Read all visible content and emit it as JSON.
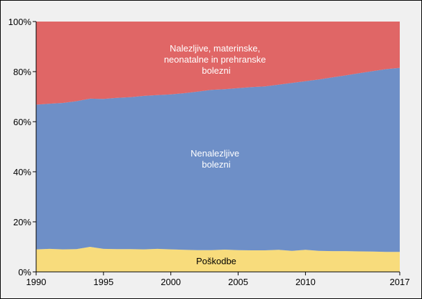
{
  "chart_data": {
    "type": "area",
    "stacked": true,
    "percent": true,
    "x": [
      1990,
      1991,
      1992,
      1993,
      1994,
      1995,
      1996,
      1997,
      1998,
      1999,
      2000,
      2001,
      2002,
      2003,
      2004,
      2005,
      2006,
      2007,
      2008,
      2009,
      2010,
      2011,
      2012,
      2013,
      2014,
      2015,
      2016,
      2017
    ],
    "series": [
      {
        "name": "Poškodbe",
        "color": "#f8dc7c",
        "values": [
          9.0,
          9.2,
          9.0,
          9.1,
          10.0,
          9.2,
          9.1,
          9.1,
          9.0,
          9.2,
          9.0,
          8.8,
          8.7,
          8.7,
          8.9,
          8.7,
          8.6,
          8.6,
          8.8,
          8.4,
          8.8,
          8.4,
          8.3,
          8.3,
          8.2,
          8.1,
          8.0,
          8.0
        ]
      },
      {
        "name": "Nenalezljive bolezni",
        "color": "#6e8fc7",
        "values": [
          57.8,
          58.0,
          58.5,
          59.1,
          59.2,
          59.9,
          60.4,
          60.7,
          61.3,
          61.4,
          61.9,
          62.6,
          63.3,
          64.0,
          64.1,
          64.7,
          65.2,
          65.5,
          66.0,
          67.1,
          67.4,
          68.5,
          69.4,
          70.2,
          71.2,
          72.1,
          73.0,
          73.5
        ]
      },
      {
        "name": "Nalezljive, materinske, neonatalne in prehranske bolezni",
        "color": "#e06666",
        "values": [
          33.2,
          32.8,
          32.5,
          31.8,
          30.8,
          30.9,
          30.5,
          30.2,
          29.7,
          29.4,
          29.1,
          28.6,
          28.0,
          27.3,
          27.0,
          26.6,
          26.2,
          25.9,
          25.2,
          24.5,
          23.8,
          23.1,
          22.3,
          21.5,
          20.6,
          19.8,
          19.0,
          18.5
        ]
      }
    ],
    "x_ticks": [
      "1990",
      "1995",
      "2000",
      "2005",
      "2010",
      "2017"
    ],
    "y_ticks": [
      "0%",
      "20%",
      "40%",
      "60%",
      "80%",
      "100%"
    ],
    "ylim": [
      0,
      100
    ],
    "labels": {
      "top_lines": [
        "Nalezljive, materinske,",
        "neonatalne in prehranske",
        "bolezni"
      ],
      "middle_lines": [
        "Nenalezljive",
        "bolezni"
      ],
      "bottom_lines": [
        "Poškodbe"
      ]
    },
    "label_colors": {
      "light": "#ffffff",
      "dark": "#000000"
    },
    "grid": false,
    "legend": "none"
  }
}
